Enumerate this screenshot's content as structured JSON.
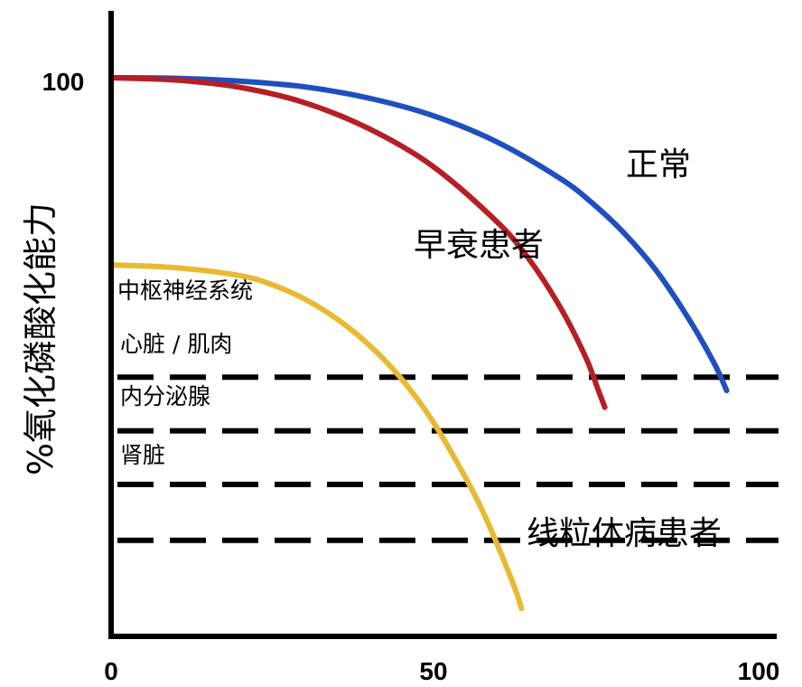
{
  "chart_data": {
    "type": "line",
    "title": "",
    "xlabel": "",
    "ylabel": "%氧化磷酸化能力",
    "xlim": [
      0,
      100
    ],
    "ylim": [
      0,
      100
    ],
    "x_ticks": [
      "0",
      "50",
      "100"
    ],
    "y_ticks": [
      "100"
    ],
    "grid": false,
    "series": [
      {
        "name": "正常",
        "color": "#1f4fbf",
        "x": [
          0,
          10,
          20,
          30,
          40,
          50,
          60,
          70,
          75,
          80,
          85,
          90,
          94,
          96
        ],
        "y": [
          100,
          99.9,
          99.4,
          98.4,
          96.4,
          93.3,
          88.6,
          82,
          77.6,
          72.2,
          65.5,
          57,
          49,
          44
        ]
      },
      {
        "name": "早衰患者",
        "color": "#b51f24",
        "x": [
          0,
          10,
          20,
          30,
          40,
          50,
          60,
          65,
          70,
          74,
          76,
          77
        ],
        "y": [
          100,
          99.6,
          98.3,
          95.6,
          91,
          84.3,
          74.4,
          67.8,
          59,
          50,
          44,
          41
        ]
      },
      {
        "name": "线粒体病患者",
        "color": "#e8b931",
        "x": [
          0,
          10,
          20,
          25,
          30,
          35,
          40,
          45,
          50,
          55,
          58,
          61,
          63,
          64
        ],
        "y": [
          66.5,
          66,
          64.6,
          63,
          60.5,
          57,
          52.4,
          46.5,
          38.8,
          29,
          22.3,
          14.3,
          8.5,
          5
        ]
      }
    ],
    "thresholds": [
      {
        "label": "中枢神经系统",
        "y": 46.4
      },
      {
        "label": "心脏 / 肌肉",
        "y": 36.8
      },
      {
        "label": "内分泌腺",
        "y": 27.2
      },
      {
        "label": "肾脏",
        "y": 17.2
      }
    ]
  }
}
